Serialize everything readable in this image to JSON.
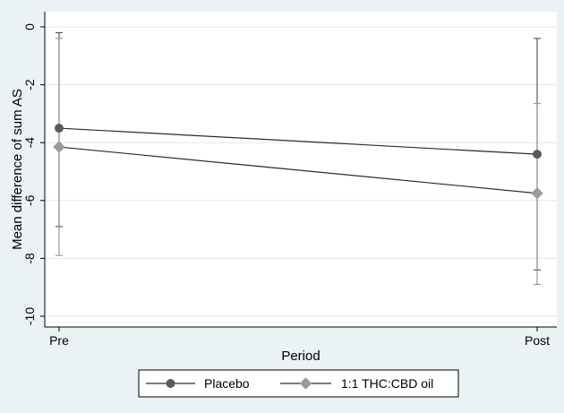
{
  "chart_data": {
    "type": "line",
    "title": "",
    "xlabel": "Period",
    "ylabel": "Mean difference of sum AS",
    "categories": [
      "Pre",
      "Post"
    ],
    "ylim": [
      -10,
      0
    ],
    "yticks": [
      0,
      -2,
      -4,
      -6,
      -8,
      -10
    ],
    "yticklabels": [
      "0",
      "-2",
      "-4",
      "-6",
      "-8",
      "-10"
    ],
    "grid": true,
    "legend_position": "bottom",
    "series": [
      {
        "name": "Placebo",
        "marker": "circle",
        "color": "#5a5a5a",
        "values": [
          -3.5,
          -4.4
        ],
        "ci_low": [
          -6.9,
          -8.4
        ],
        "ci_high": [
          -0.2,
          -0.4
        ]
      },
      {
        "name": "1:1 THC:CBD oil",
        "marker": "diamond",
        "color": "#9a9a9a",
        "values": [
          -4.15,
          -5.75
        ],
        "ci_low": [
          -7.9,
          -8.9
        ],
        "ci_high": [
          -0.4,
          -2.65
        ]
      }
    ]
  }
}
